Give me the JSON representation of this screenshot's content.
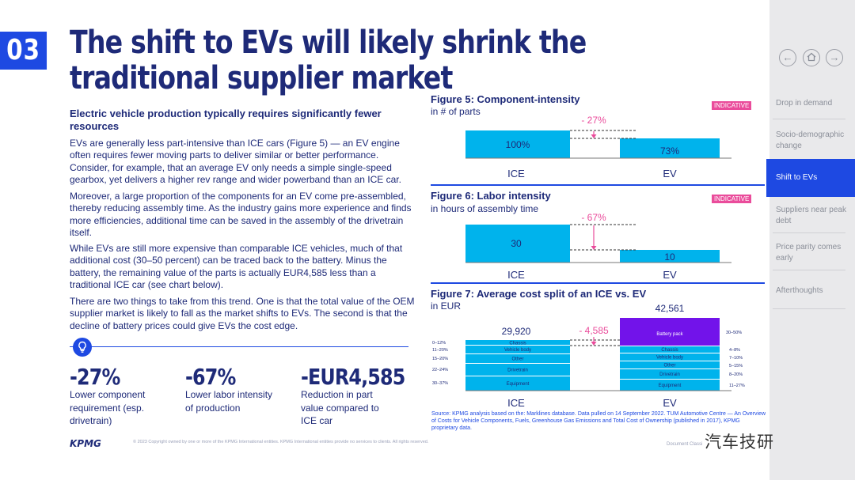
{
  "section_number": "03",
  "title": "The shift to EVs will likely shrink the traditional supplier market",
  "lead": "Electric vehicle production typically requires significantly fewer resources",
  "paragraphs": [
    "EVs are generally less part-intensive than ICE cars (Figure 5) — an EV engine often requires fewer moving parts to deliver similar or better performance. Consider, for example, that an average EV only needs a simple single-speed gearbox, yet delivers a higher rev range and wider powerband than an ICE car.",
    "Moreover, a large proportion of the components for an EV come pre-assembled, thereby reducing assembly time. As the industry gains more experience and finds more efficiencies, additional time can be saved in the assembly of the drivetrain itself.",
    "While EVs are still more expensive than comparable ICE vehicles, much of that additional cost (30–50 percent) can be traced back to the battery. Minus the battery, the remaining value of the parts is actually EUR4,585 less than a traditional ICE car (see chart below).",
    "There are two things to take from this trend. One is that the total value of the OEM supplier market is likely to fall as the market shifts to EVs. The second is that the decline of battery prices could give EVs the cost edge."
  ],
  "stats": [
    {
      "value": "-27%",
      "desc": "Lower component requirement (esp. drivetrain)"
    },
    {
      "value": "-67%",
      "desc": "Lower labor intensity of production"
    },
    {
      "value": "-EUR4,585",
      "desc": "Reduction in part value compared to ICE car"
    }
  ],
  "footer_text": "© 2023 Copyright owned by one or more of the KPMG International entities. KPMG International entities provide no services to clients. All rights reserved.",
  "kpmg_logo": "KPMG",
  "doc_class": "Document Classi",
  "watermark": "汽车技研",
  "colors": {
    "primary": "#1e49e2",
    "navy": "#1e2a78",
    "cyan": "#00b3ec",
    "purple": "#7213ea",
    "pink": "#ea4c9b"
  },
  "fig5": {
    "title": "Figure 5: Component-intensity",
    "subtitle": "in # of parts",
    "tag": "INDICATIVE",
    "delta": "- 27%",
    "ice_label": "100%",
    "ev_label": "73%",
    "x_ice": "ICE",
    "x_ev": "EV"
  },
  "fig6": {
    "title": "Figure 6: Labor intensity",
    "subtitle": "in hours of assembly time",
    "tag": "INDICATIVE",
    "delta": "- 67%",
    "ice_label": "30",
    "ev_label": "10",
    "x_ice": "ICE",
    "x_ev": "EV"
  },
  "fig7": {
    "title": "Figure 7: Average cost split of an ICE vs. EV",
    "subtitle": "in EUR",
    "ice_total": "29,920",
    "ev_total": "42,561",
    "delta": "- 4,585",
    "x_ice": "ICE",
    "x_ev": "EV",
    "ice_segments": [
      {
        "name": "Chassis",
        "range": "0–12%"
      },
      {
        "name": "Vehicle body",
        "range": "11–20%"
      },
      {
        "name": "Other",
        "range": "15–20%"
      },
      {
        "name": "Drivetrain",
        "range": "22–24%"
      },
      {
        "name": "Equipment",
        "range": "30–37%"
      }
    ],
    "ev_segments": [
      {
        "name": "Battery pack",
        "range": "30–50%"
      },
      {
        "name": "Chassis",
        "range": "4–8%"
      },
      {
        "name": "Vehicle body",
        "range": "7–10%"
      },
      {
        "name": "Other",
        "range": "5–15%"
      },
      {
        "name": "Drivetrain",
        "range": "8–20%"
      },
      {
        "name": "Equipment",
        "range": "11–27%"
      }
    ]
  },
  "chart_data": [
    {
      "type": "bar",
      "title": "Figure 5: Component-intensity",
      "ylabel": "in # of parts",
      "categories": [
        "ICE",
        "EV"
      ],
      "values": [
        100,
        73
      ]
    },
    {
      "type": "bar",
      "title": "Figure 6: Labor intensity",
      "ylabel": "in hours of assembly time",
      "categories": [
        "ICE",
        "EV"
      ],
      "values": [
        30,
        10
      ]
    },
    {
      "type": "bar",
      "title": "Figure 7: Average cost split of an ICE vs. EV",
      "ylabel": "in EUR",
      "categories": [
        "ICE",
        "EV"
      ],
      "values": [
        29920,
        42561
      ]
    }
  ],
  "source": "Source: KPMG analysis based on the: Marklines database. Data pulled on 14 September 2022. TUM Automotive Centre — An Overview of Costs for Vehicle Components, Fuels, Greenhouse Gas Emissions and Total Cost of Ownership (published in 2017), KPMG proprietary data.",
  "nav": {
    "items": [
      "Drop in demand",
      "Socio-demographic change",
      "Shift to EVs",
      "Suppliers near peak debt",
      "Price parity comes early",
      "Afterthoughts"
    ],
    "active_index": 2
  }
}
